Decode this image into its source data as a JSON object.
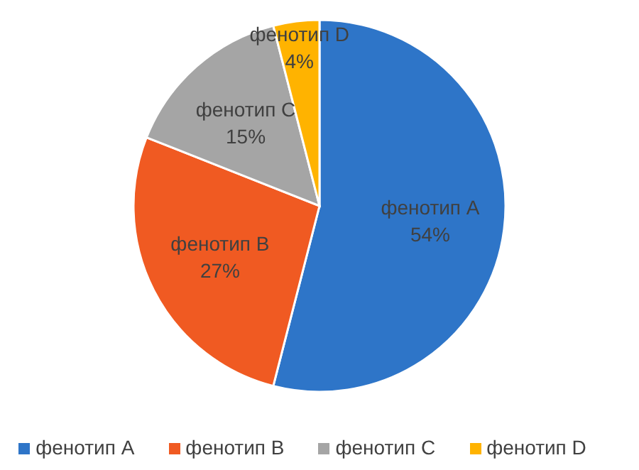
{
  "chart_data": {
    "type": "pie",
    "categories": [
      "фенотип A",
      "фенотип B",
      "фенотип C",
      "фенотип D"
    ],
    "values": [
      54,
      27,
      15,
      4
    ],
    "value_labels": [
      "54%",
      "27%",
      "15%",
      "4%"
    ],
    "colors": [
      "#2e75c8",
      "#f05a22",
      "#a5a5a5",
      "#ffb300"
    ],
    "legend": "bottom"
  }
}
